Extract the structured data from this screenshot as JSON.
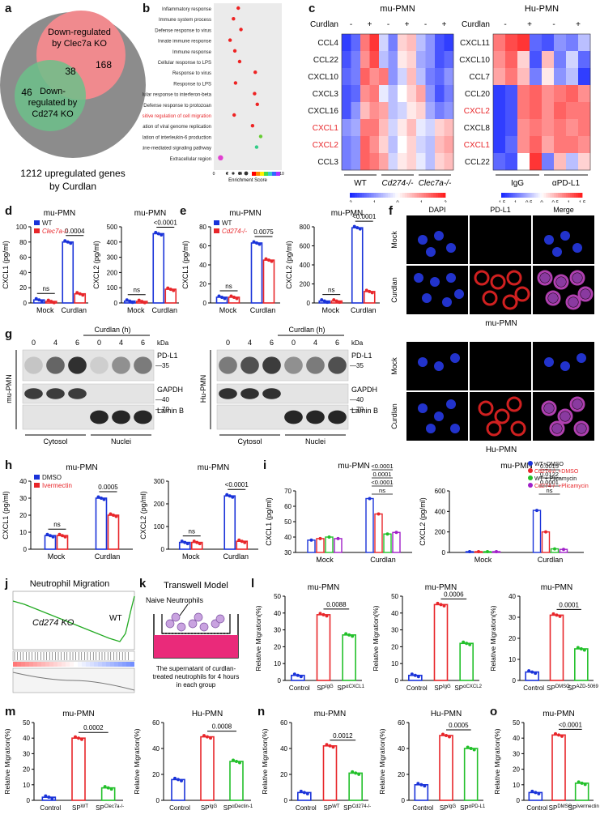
{
  "panel_letters": [
    "a",
    "b",
    "c",
    "d",
    "e",
    "f",
    "g",
    "h",
    "i",
    "j",
    "k",
    "l",
    "m",
    "n",
    "o"
  ],
  "venn": {
    "outer_label": [
      "1212 upregulated genes",
      "by Curdlan"
    ],
    "circle1": [
      "Down-regulated",
      "by Clec7a KO"
    ],
    "circle2": [
      "Down-",
      "regulated by",
      "Cd274 KO"
    ],
    "counts": {
      "c1_only": "168",
      "overlap": "38",
      "c2_only": "46"
    }
  },
  "dotplot": {
    "terms": [
      "Inflammatory response",
      "Immune system process",
      "Defense response to virus",
      "Innate immune response",
      "Immune response",
      "Cellular response to LPS",
      "Response to virus",
      "Response to LPS",
      "Cellular response to interferon-beta",
      "Defense response to protozoan",
      "Positive regulation of cell migration",
      "Negative regulation of viral genome replication",
      "Positive regulation of interleukin-6 production",
      "Cytokine-mediated signaling pathway",
      "Extracellular region"
    ],
    "highlight_index": 10,
    "xlabel": "Enrichment Score",
    "xticks": [
      "0",
      "2",
      "4",
      "6",
      "8",
      "10"
    ]
  },
  "heatmap_mu": {
    "title": "mu-PMN",
    "row_header": "Curdlan",
    "signs": [
      "-",
      "+",
      "-",
      "+",
      "-",
      "+"
    ],
    "genes": [
      "CCL4",
      "CCL22",
      "CXCL10",
      "CXCL3",
      "CXCL16",
      "CXCL1",
      "CXCL2",
      "CCL3"
    ],
    "red_genes": [
      5,
      6
    ],
    "groups": [
      "WT",
      "Cd274-/-",
      "Clec7a-/-"
    ],
    "scale": [
      "-2",
      "-1",
      "0",
      "1",
      "2"
    ]
  },
  "heatmap_hu": {
    "title": "Hu-PMN",
    "row_header": "Curdlan",
    "signs": [
      "-",
      "+",
      "-",
      "+"
    ],
    "genes": [
      "CXCL11",
      "CXCL10",
      "CCL7",
      "CCL20",
      "CXCL2",
      "CXCL8",
      "CXCL1",
      "CCL22"
    ],
    "red_genes": [
      4,
      6
    ],
    "groups": [
      "IgG",
      "αPD-L1"
    ],
    "scale": [
      "-1.5",
      "-1",
      "-0.5",
      "0",
      "0.5",
      "1",
      "1.5"
    ]
  },
  "bar_panels": {
    "d1": {
      "title": "mu-PMN",
      "ylabel": "CXCL1 (pg/ml)",
      "yticks": [
        "0",
        "20",
        "40",
        "60",
        "80",
        "100"
      ],
      "ymax": 100,
      "legend": [
        "WT",
        "Clec7a-/-"
      ],
      "cats": [
        "Mock",
        "Curdlan"
      ],
      "vals": [
        [
          4,
          2
        ],
        [
          80,
          12
        ]
      ],
      "sig": [
        {
          "text": "ns",
          "cat": 0
        },
        {
          "text": "0.0004",
          "cat": 1
        }
      ]
    },
    "d2": {
      "title": "mu-PMN",
      "ylabel": "CXCL2 (pg/ml)",
      "yticks": [
        "0",
        "100",
        "200",
        "300",
        "400",
        "500"
      ],
      "ymax": 500,
      "cats": [
        "Mock",
        "Curdlan"
      ],
      "vals": [
        [
          12,
          10
        ],
        [
          455,
          90
        ]
      ],
      "sig": [
        {
          "text": "ns",
          "cat": 0
        },
        {
          "text": "<0.0001",
          "cat": 1
        }
      ]
    },
    "e1": {
      "title": "mu-PMN",
      "ylabel": "CXCL1 (pg/ml)",
      "yticks": [
        "0",
        "20",
        "40",
        "60",
        "80"
      ],
      "ymax": 80,
      "legend": [
        "WT",
        "Cd274-/-"
      ],
      "cats": [
        "Mock",
        "Curdlan"
      ],
      "vals": [
        [
          6,
          6
        ],
        [
          63,
          45
        ]
      ],
      "sig": [
        {
          "text": "ns",
          "cat": 0
        },
        {
          "text": "0.0075",
          "cat": 1
        }
      ]
    },
    "e2": {
      "title": "mu-PMN",
      "ylabel": "CXCL2 (pg/ml)",
      "yticks": [
        "0",
        "200",
        "400",
        "600",
        "800"
      ],
      "ymax": 800,
      "cats": [
        "Mock",
        "Curdlan"
      ],
      "vals": [
        [
          20,
          20
        ],
        [
          790,
          120
        ]
      ],
      "sig": [
        {
          "text": "ns",
          "cat": 0
        },
        {
          "text": "<0.0001",
          "cat": 1
        }
      ]
    },
    "h1": {
      "title": "mu-PMN",
      "ylabel": "CXCL1 (pg/ml)",
      "yticks": [
        "0",
        "10",
        "20",
        "30",
        "40"
      ],
      "ymax": 40,
      "legend": [
        "DMSO",
        "Ivermectin"
      ],
      "cats": [
        "Mock",
        "Curdlan"
      ],
      "vals": [
        [
          8,
          8
        ],
        [
          30,
          20
        ]
      ],
      "sig": [
        {
          "text": "ns",
          "cat": 0
        },
        {
          "text": "0.0005",
          "cat": 1
        }
      ]
    },
    "h2": {
      "title": "mu-PMN",
      "ylabel": "CXCL2 (pg/ml)",
      "yticks": [
        "0",
        "100",
        "200",
        "300"
      ],
      "ymax": 300,
      "cats": [
        "Mock",
        "Curdlan"
      ],
      "vals": [
        [
          30,
          30
        ],
        [
          235,
          35
        ]
      ],
      "sig": [
        {
          "text": "ns",
          "cat": 0
        },
        {
          "text": "<0.0001",
          "cat": 1
        }
      ]
    }
  },
  "quad_panels": {
    "i1": {
      "title": "mu-PMN",
      "ylabel": "CXCL1 (pg/ml)",
      "yticks": [
        "30",
        "40",
        "50",
        "60",
        "70"
      ],
      "ymin": 30,
      "ymax": 70,
      "cats": [
        "Mock",
        "Curdlan"
      ],
      "vals": [
        [
          38,
          39,
          40,
          39
        ],
        [
          65,
          55,
          42,
          43
        ]
      ],
      "sig": [
        "<0.0001",
        "0.0001",
        "<0.0001",
        "ns"
      ]
    },
    "i2": {
      "title": "mu-PMN",
      "ylabel": "CXCL2 (pg/ml)",
      "yticks": [
        "0",
        "200",
        "400",
        "600"
      ],
      "ymin": 0,
      "ymax": 600,
      "cats": [
        "Mock",
        "Curdlan"
      ],
      "vals": [
        [
          8,
          8,
          8,
          8
        ],
        [
          410,
          200,
          35,
          30
        ]
      ],
      "sig": [
        "0.0015",
        "0.0122",
        "0.0001",
        "ns"
      ]
    },
    "legend": [
      "WT+DMSO",
      "Cd274-/- +DMSO",
      "WT + Plicamycin",
      "Cd274-/- +Plicamycin"
    ]
  },
  "migration_panels": {
    "l1": {
      "title": "mu-PMN",
      "cats": [
        "Control",
        "SP",
        "SP"
      ],
      "subs": [
        "",
        "IgG",
        "αCXCL1"
      ],
      "vals": [
        3,
        39,
        27
      ],
      "p": "0.0088",
      "ymax": 50,
      "yticks": [
        "0",
        "10",
        "20",
        "30",
        "40",
        "50"
      ]
    },
    "l2": {
      "title": "mu-PMN",
      "cats": [
        "Control",
        "SP",
        "SP"
      ],
      "subs": [
        "",
        "IgG",
        "αCXCL2"
      ],
      "vals": [
        3,
        45,
        22
      ],
      "p": "0.0006",
      "ymax": 50,
      "yticks": [
        "0",
        "10",
        "20",
        "30",
        "40",
        "50"
      ]
    },
    "l3": {
      "title": "mu-PMN",
      "cats": [
        "Control",
        "SP",
        "SP"
      ],
      "subs": [
        "",
        "DMSO",
        "AZD-5069"
      ],
      "vals": [
        4,
        31,
        15
      ],
      "p": "0.0001",
      "ymax": 40,
      "yticks": [
        "0",
        "10",
        "20",
        "30",
        "40"
      ]
    },
    "m1": {
      "title": "mu-PMN",
      "cats": [
        "Control",
        "SP",
        "SP"
      ],
      "subs": [
        "",
        "WT",
        "Clec7a-/-"
      ],
      "vals": [
        2,
        40,
        8
      ],
      "p": "0.0002",
      "ymax": 50,
      "yticks": [
        "0",
        "10",
        "20",
        "30",
        "40",
        "50"
      ]
    },
    "m2": {
      "title": "Hu-PMN",
      "cats": [
        "Control",
        "SP",
        "SP"
      ],
      "subs": [
        "",
        "IgG",
        "αDectin-1"
      ],
      "vals": [
        16,
        49,
        30
      ],
      "p": "0.0008",
      "ymax": 60,
      "yticks": [
        "0",
        "20",
        "40",
        "60"
      ]
    },
    "n1": {
      "title": "mu-PMN",
      "cats": [
        "Control",
        "SP",
        "SP"
      ],
      "subs": [
        "",
        "WT",
        "Cd274-/-"
      ],
      "vals": [
        6,
        42,
        21
      ],
      "p": "0.0012",
      "ymax": 60,
      "yticks": [
        "0",
        "20",
        "40",
        "60"
      ]
    },
    "n2": {
      "title": "Hu-PMN",
      "cats": [
        "Control",
        "SP",
        "SP"
      ],
      "subs": [
        "",
        "IgG",
        "αPD-L1"
      ],
      "vals": [
        12,
        50,
        40
      ],
      "p": "0.0005",
      "ymax": 60,
      "yticks": [
        "0",
        "20",
        "40",
        "60"
      ]
    },
    "o1": {
      "title": "mu-PMN",
      "cats": [
        "Control",
        "SP",
        "SP"
      ],
      "subs": [
        "",
        "DMSO",
        "Ivermectin"
      ],
      "vals": [
        5,
        42,
        11
      ],
      "p": "<0.0001",
      "ymax": 50,
      "yticks": [
        "0",
        "10",
        "20",
        "30",
        "40",
        "50"
      ]
    },
    "ylabel": "Relative Migration(%)"
  },
  "western": {
    "header": "Curdlan (h)",
    "times": [
      "0",
      "4",
      "6",
      "0",
      "4",
      "6"
    ],
    "kda": "kDa",
    "bands": [
      "PD-L1",
      "GAPDH",
      "Lamin B"
    ],
    "markers": [
      "35",
      "40",
      "70"
    ],
    "fractions": [
      "Cytosol",
      "Nuclei"
    ],
    "side_mu": "mu-PMN",
    "side_hu": "Hu-PMN"
  },
  "microscopy": {
    "cols": [
      "DAPI",
      "PD-L1",
      "Merge"
    ],
    "rows": [
      "Mock",
      "Curdlan"
    ],
    "caption_mu": "mu-PMN",
    "caption_hu": "Hu-PMN"
  },
  "gsea": {
    "title": "Neutrophil Migration",
    "wt": "WT",
    "ko": "Cd274 KO"
  },
  "transwell": {
    "title": "Transwell Model",
    "naive": "Naive Neutrophils",
    "caption": "The supernatant of curdlan-treated neutrophils for 4 hours in each group"
  },
  "colors": {
    "blue": "#1a33d9",
    "red": "#e8262a",
    "green": "#22c02a",
    "purple": "#a020c8"
  }
}
